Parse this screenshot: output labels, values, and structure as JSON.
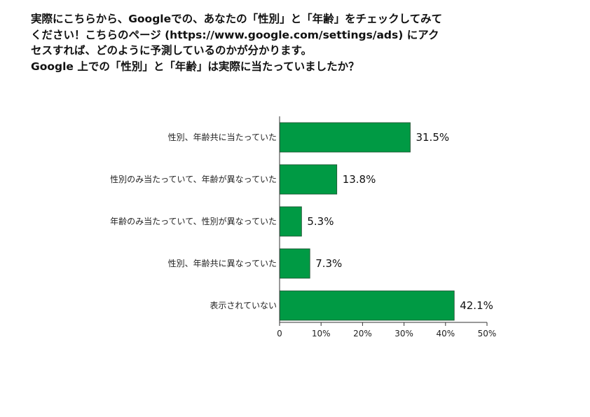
{
  "question_lines": [
    "実際にこちらから、Googleでの、あなたの「性別」と「年齢」をチェックしてみて",
    "ください！こちらのページ (https://www.google.com/settings/ads) にアク",
    "セスすれば、どのように予測しているのかが分かります。",
    "Google 上での「性別」と「年齢」は実際に当たっていましたか？"
  ],
  "chart_data": {
    "type": "bar",
    "orientation": "horizontal",
    "categories": [
      "性別、年齢共に当たっていた",
      "性別のみ当たっていて、年齢が異なっていた",
      "年齢のみ当たっていて、性別が異なっていた",
      "性別、年齢共に異なっていた",
      "表示されていない"
    ],
    "values": [
      31.5,
      13.8,
      5.3,
      7.3,
      42.1
    ],
    "value_labels": [
      "31.5%",
      "13.8%",
      "5.3%",
      "7.3%",
      "42.1%"
    ],
    "xlim": [
      0,
      50
    ],
    "xticks": [
      0,
      10,
      20,
      30,
      40,
      50
    ],
    "xtick_labels": [
      "0",
      "10%",
      "20%",
      "30%",
      "40%",
      "50%"
    ],
    "grid": false,
    "bar_color": "#009a44"
  }
}
